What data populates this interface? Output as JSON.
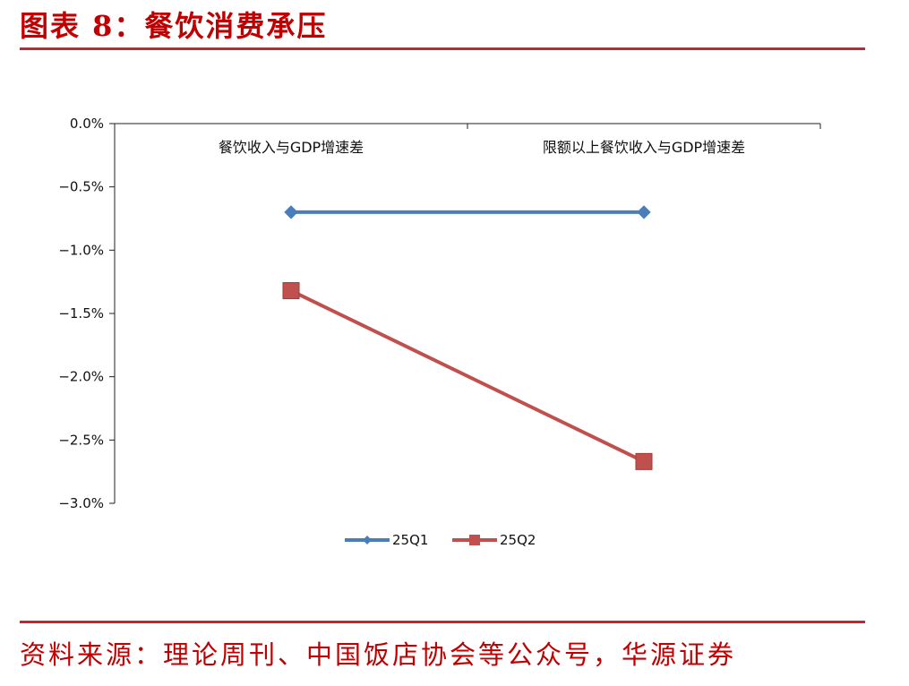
{
  "header": {
    "title": "图表 8：餐饮消费承压"
  },
  "footer": {
    "source": "资料来源：理论周刊、中国饭店协会等公众号，华源证券"
  },
  "chart_data": {
    "type": "line",
    "title": "",
    "xlabel": "",
    "ylabel": "",
    "categories": [
      "餐饮收入与GDP增速差",
      "限额以上餐饮收入与GDP增速差"
    ],
    "ylim": [
      -3.0,
      0.0
    ],
    "yticks": [
      0.0,
      -0.5,
      -1.0,
      -1.5,
      -2.0,
      -2.5,
      -3.0
    ],
    "ytick_labels": [
      "0.0%",
      "−0.5%",
      "−1.0%",
      "−1.5%",
      "−2.0%",
      "−2.5%",
      "−3.0%"
    ],
    "x_axis_at_top": true,
    "grid": false,
    "legend_position": "bottom",
    "series": [
      {
        "name": "25Q1",
        "values": [
          -0.7,
          -0.7
        ],
        "color": "#4a7ebb",
        "marker": "diamond"
      },
      {
        "name": "25Q2",
        "values": [
          -1.32,
          -2.67
        ],
        "color": "#c0504d",
        "marker": "square"
      }
    ]
  }
}
